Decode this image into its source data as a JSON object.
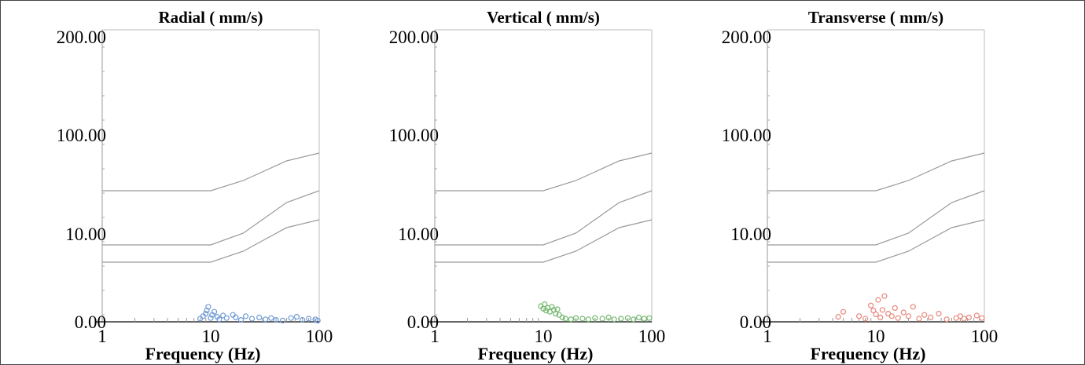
{
  "chart_data": [
    {
      "type": "scatter",
      "title": "Radial ( mm/s)",
      "xlabel": "Frequency (Hz)",
      "ylabel": "",
      "x_scale": "log",
      "xlim": [
        1,
        100
      ],
      "x_ticks": [
        "1",
        "10",
        "100"
      ],
      "y_ticks": [
        "0.00",
        "10.00",
        "100.00",
        "200.00"
      ],
      "series": [
        {
          "color": "#6f9ad6",
          "points": [
            [
              8,
              0.5
            ],
            [
              8.5,
              0.9
            ],
            [
              9,
              1.3
            ],
            [
              9.2,
              1.8
            ],
            [
              9.5,
              2.4
            ],
            [
              10,
              0.6
            ],
            [
              10.3,
              1.1
            ],
            [
              10.8,
              1.6
            ],
            [
              11.5,
              0.8
            ],
            [
              12,
              0.4
            ],
            [
              13,
              1.0
            ],
            [
              14,
              0.6
            ],
            [
              16,
              1.1
            ],
            [
              17,
              0.7
            ],
            [
              19,
              0.3
            ],
            [
              21,
              0.9
            ],
            [
              24,
              0.5
            ],
            [
              28,
              0.7
            ],
            [
              32,
              0.4
            ],
            [
              36,
              0.6
            ],
            [
              40,
              0.3
            ],
            [
              46,
              0.2
            ],
            [
              55,
              0.6
            ],
            [
              62,
              0.8
            ],
            [
              70,
              0.3
            ],
            [
              80,
              0.5
            ],
            [
              92,
              0.4
            ],
            [
              97,
              0.2
            ]
          ]
        }
      ]
    },
    {
      "type": "scatter",
      "title": "Vertical ( mm/s)",
      "xlabel": "Frequency (Hz)",
      "ylabel": "",
      "x_scale": "log",
      "xlim": [
        1,
        100
      ],
      "x_ticks": [
        "1",
        "10",
        "100"
      ],
      "y_ticks": [
        "0.00",
        "10.00",
        "100.00",
        "200.00"
      ],
      "series": [
        {
          "color": "#73b86e",
          "points": [
            [
              9.5,
              2.5
            ],
            [
              10,
              2.1
            ],
            [
              10.3,
              2.8
            ],
            [
              10.6,
              1.8
            ],
            [
              11,
              2.2
            ],
            [
              11.5,
              1.6
            ],
            [
              12,
              2.4
            ],
            [
              12.5,
              1.9
            ],
            [
              13,
              1.3
            ],
            [
              13.5,
              2.0
            ],
            [
              14,
              1.1
            ],
            [
              15,
              0.7
            ],
            [
              16,
              0.5
            ],
            [
              18,
              0.4
            ],
            [
              20,
              0.6
            ],
            [
              23,
              0.5
            ],
            [
              26,
              0.4
            ],
            [
              30,
              0.6
            ],
            [
              35,
              0.5
            ],
            [
              40,
              0.7
            ],
            [
              45,
              0.4
            ],
            [
              52,
              0.5
            ],
            [
              60,
              0.6
            ],
            [
              68,
              0.4
            ],
            [
              76,
              0.7
            ],
            [
              85,
              0.5
            ],
            [
              95,
              0.6
            ]
          ]
        }
      ]
    },
    {
      "type": "scatter",
      "title": "Transverse ( mm/s)",
      "xlabel": "Frequency (Hz)",
      "ylabel": "",
      "x_scale": "log",
      "xlim": [
        1,
        100
      ],
      "x_ticks": [
        "1",
        "10",
        "100"
      ],
      "y_ticks": [
        "0.00",
        "10.00",
        "100.00",
        "200.00"
      ],
      "series": [
        {
          "color": "#e8877c",
          "points": [
            [
              4.5,
              0.8
            ],
            [
              5,
              1.6
            ],
            [
              7,
              0.9
            ],
            [
              8,
              0.5
            ],
            [
              9,
              2.6
            ],
            [
              9.5,
              1.8
            ],
            [
              10,
              1.2
            ],
            [
              10.5,
              3.5
            ],
            [
              11,
              0.7
            ],
            [
              11.5,
              1.9
            ],
            [
              12,
              4.1
            ],
            [
              13,
              1.3
            ],
            [
              14,
              0.9
            ],
            [
              15,
              2.2
            ],
            [
              16,
              0.6
            ],
            [
              18,
              1.5
            ],
            [
              20,
              0.9
            ],
            [
              22,
              2.4
            ],
            [
              25,
              0.5
            ],
            [
              28,
              1.1
            ],
            [
              32,
              0.7
            ],
            [
              38,
              1.3
            ],
            [
              45,
              0.4
            ],
            [
              55,
              0.6
            ],
            [
              60,
              0.9
            ],
            [
              65,
              0.5
            ],
            [
              72,
              0.7
            ],
            [
              85,
              1.0
            ],
            [
              95,
              0.6
            ]
          ]
        }
      ]
    }
  ]
}
